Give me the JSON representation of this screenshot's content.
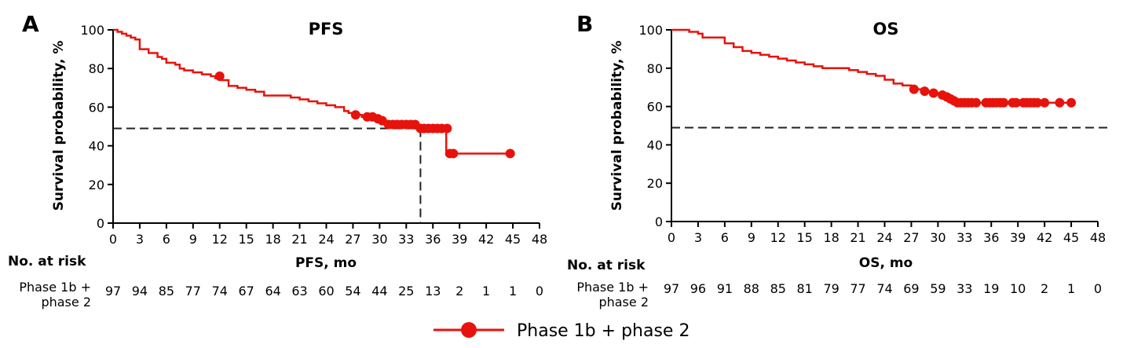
{
  "colors": {
    "series": "#e8120c",
    "axis": "#000000",
    "reference": "#222222"
  },
  "legend": {
    "label": "Phase 1b + phase 2",
    "icon": "line-with-circle-marker"
  },
  "chart_data": [
    {
      "type": "line",
      "subtype": "kaplan-meier step",
      "panel_letter": "A",
      "title": "PFS",
      "xlabel": "PFS, mo",
      "ylabel": "Survival probability, %",
      "xlim": [
        0,
        48
      ],
      "ylim": [
        0,
        100
      ],
      "xticks": [
        "0",
        "3",
        "6",
        "9",
        "12",
        "15",
        "18",
        "21",
        "24",
        "27",
        "30",
        "33",
        "36",
        "39",
        "42",
        "45",
        "48"
      ],
      "yticks": [
        "0",
        "20",
        "40",
        "60",
        "80",
        "100"
      ],
      "grid": false,
      "series": [
        {
          "name": "Phase 1b + phase 2",
          "x": [
            0,
            0.5,
            1,
            1.5,
            2,
            2.5,
            3,
            4,
            5,
            5.5,
            6,
            7,
            7.5,
            8,
            9,
            10,
            11,
            11.5,
            12,
            13,
            14,
            15,
            16,
            17,
            18,
            20,
            21,
            22,
            23,
            24,
            25,
            26,
            26.5,
            27,
            28,
            29,
            29.5,
            30,
            31,
            32,
            33,
            34,
            34.5,
            37.5,
            38,
            44.7
          ],
          "y": [
            100,
            99,
            98,
            97,
            96,
            95,
            90,
            88,
            86,
            85,
            83,
            82,
            80,
            79,
            78,
            77,
            76,
            75,
            74,
            71,
            70,
            69,
            68,
            66,
            66,
            65,
            64,
            63,
            62,
            61,
            60,
            58,
            57,
            56,
            55,
            54,
            53,
            52,
            51,
            51,
            51,
            49,
            49,
            36,
            36,
            36
          ],
          "censor_x": [
            12,
            27.3,
            28.6,
            29.2,
            29.8,
            30.3,
            31,
            31.5,
            32,
            32.5,
            33,
            33.5,
            34,
            34.6,
            35,
            35.5,
            36,
            36.5,
            37,
            37.6,
            37.9,
            38.3,
            44.7
          ],
          "censor_y": [
            76,
            56,
            55,
            55,
            54,
            53,
            51,
            51,
            51,
            51,
            51,
            51,
            51,
            49,
            49,
            49,
            49,
            49,
            49,
            49,
            36,
            36,
            36
          ]
        }
      ],
      "median_line": {
        "y": 49,
        "x": 34.6
      },
      "at_risk": {
        "header": "No. at risk",
        "label_line1": "Phase 1b +",
        "label_line2": "phase 2",
        "values": [
          "97",
          "94",
          "85",
          "77",
          "74",
          "67",
          "64",
          "63",
          "60",
          "54",
          "44",
          "25",
          "13",
          "2",
          "1",
          "1",
          "0"
        ]
      }
    },
    {
      "type": "line",
      "subtype": "kaplan-meier step",
      "panel_letter": "B",
      "title": "OS",
      "xlabel": "OS, mo",
      "ylabel": "Survival probability, %",
      "xlim": [
        0,
        48
      ],
      "ylim": [
        0,
        100
      ],
      "xticks": [
        "0",
        "3",
        "6",
        "9",
        "12",
        "15",
        "18",
        "21",
        "24",
        "27",
        "30",
        "33",
        "36",
        "39",
        "42",
        "45",
        "48"
      ],
      "yticks": [
        "0",
        "20",
        "40",
        "60",
        "80",
        "100"
      ],
      "grid": false,
      "series": [
        {
          "name": "Phase 1b + phase 2",
          "x": [
            0,
            2,
            3,
            3.5,
            6,
            7,
            8,
            9,
            10,
            11,
            12,
            13,
            14,
            15,
            16,
            17,
            18,
            20,
            21,
            22,
            23,
            24,
            25,
            26,
            27,
            27.5,
            28.5,
            29.5,
            30.5,
            31,
            31.5,
            32,
            32.5,
            45
          ],
          "y": [
            100,
            99,
            98,
            96,
            93,
            91,
            89,
            88,
            87,
            86,
            85,
            84,
            83,
            82,
            81,
            80,
            80,
            79,
            78,
            77,
            76,
            74,
            72,
            71,
            70,
            69,
            68,
            67,
            66,
            65,
            64,
            63,
            62,
            62
          ],
          "censor_x": [
            27.3,
            28.5,
            29.5,
            30.5,
            31,
            31.4,
            31.8,
            32.2,
            32.6,
            33,
            33.4,
            33.8,
            34.3,
            35.4,
            35.8,
            36.2,
            36.6,
            37,
            37.4,
            38.4,
            38.8,
            39.6,
            40,
            40.4,
            40.8,
            41.2,
            42,
            43.7,
            45
          ],
          "censor_y": [
            69,
            68,
            67,
            66,
            65,
            64,
            63,
            62,
            62,
            62,
            62,
            62,
            62,
            62,
            62,
            62,
            62,
            62,
            62,
            62,
            62,
            62,
            62,
            62,
            62,
            62,
            62,
            62,
            62
          ]
        }
      ],
      "reference_line": {
        "y": 49
      },
      "at_risk": {
        "header": "No. at risk",
        "label_line1": "Phase 1b +",
        "label_line2": "phase 2",
        "values": [
          "97",
          "96",
          "91",
          "88",
          "85",
          "81",
          "79",
          "77",
          "74",
          "69",
          "59",
          "33",
          "19",
          "10",
          "2",
          "1",
          "0"
        ]
      }
    }
  ]
}
